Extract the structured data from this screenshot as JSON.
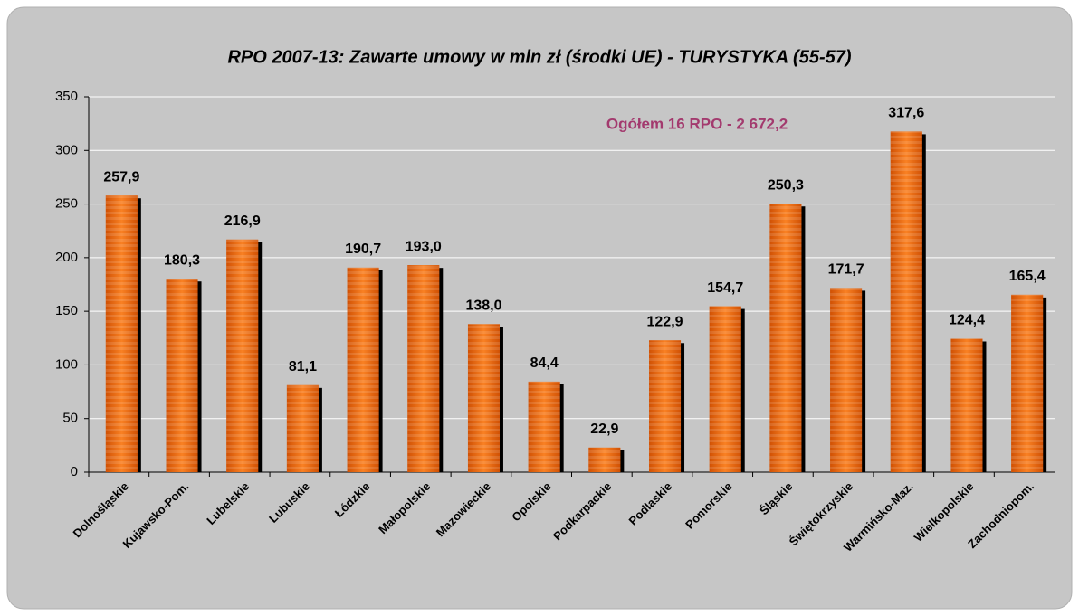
{
  "chart_data": {
    "type": "bar",
    "title": "RPO 2007-13: Zawarte umowy w mln zł (środki UE) - TURYSTYKA (55-57)",
    "annotation": "Ogółem 16 RPO - 2 672,2",
    "categories": [
      "Dolnośląskie",
      "Kujawsko-Pom.",
      "Lubelskie",
      "Lubuskie",
      "Łódzkie",
      "Małopolskie",
      "Mazowieckie",
      "Opolskie",
      "Podkarpackie",
      "Podlaskie",
      "Pomorskie",
      "Śląskie",
      "Świętokrzyskie",
      "Warmińsko-Maz.",
      "Wielkopolskie",
      "Zachodniopom."
    ],
    "values": [
      257.9,
      180.3,
      216.9,
      81.1,
      190.7,
      193.0,
      138.0,
      84.4,
      22.9,
      122.9,
      154.7,
      250.3,
      171.7,
      317.6,
      124.4,
      165.4
    ],
    "value_labels": [
      "257,9",
      "180,3",
      "216,9",
      "81,1",
      "190,7",
      "193,0",
      "138,0",
      "84,4",
      "22,9",
      "122,9",
      "154,7",
      "250,3",
      "171,7",
      "317,6",
      "124,4",
      "165,4"
    ],
    "color": "#e8650f",
    "ylim": [
      0,
      350
    ],
    "yticks": [
      0,
      50,
      100,
      150,
      200,
      250,
      300,
      350
    ],
    "grid": true
  }
}
